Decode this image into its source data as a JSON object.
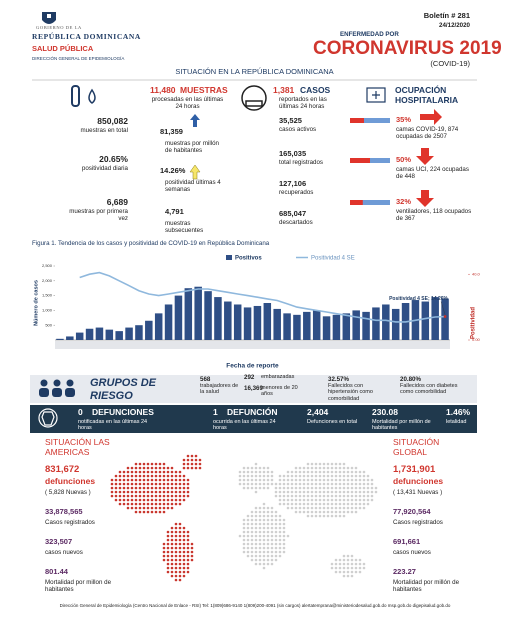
{
  "header": {
    "gov_line1": "GOBIERNO DE LA",
    "gov_line2": "REPÚBLICA DOMINICANA",
    "ministry": "SALUD PÚBLICA",
    "directorate": "DIRECCIÓN GENERAL DE EPIDEMIOLOGÍA",
    "bulletin": "Boletín # 281",
    "date": "24/12/2020",
    "kicker": "ENFERMEDAD POR",
    "title": "CORONAVIRUS 2019",
    "subtitle": "(COVID-19)"
  },
  "section_title": "SITUACIÓN EN LA REPÚBLICA DOMINICANA",
  "samples": [
    {
      "value": "850,082",
      "label": "muestras en total"
    },
    {
      "value": "20.65%",
      "label": "positividad diaria"
    },
    {
      "value": "6,689",
      "label": "muestras por primera vez"
    }
  ],
  "tests": {
    "head_value": "11,480",
    "head_label": "MUESTRAS",
    "head_note": "procesadas en las últimas 24 horas",
    "items": [
      {
        "value": "81,359",
        "label": "muestras por millón de habitantes"
      },
      {
        "value": "14.26%",
        "label": "positividad últimas 4 semanas"
      },
      {
        "value": "4,791",
        "label": "muestras subsecuentes"
      }
    ]
  },
  "cases": {
    "head_value": "1,381",
    "head_label": "CASOS",
    "head_note": "reportados en las últimas 24 horas",
    "items": [
      {
        "value": "35,525",
        "label": "casos activos"
      },
      {
        "value": "165,035",
        "label": "total registrados"
      },
      {
        "value": "127,106",
        "label": "recuperados"
      },
      {
        "value": "685,047",
        "label": "descartados"
      }
    ]
  },
  "hospital": {
    "title": "OCUPACIÓN HOSPITALARIA",
    "items": [
      {
        "value": "35%",
        "label": "camas COVID-19,  874 ocupadas de 2507"
      },
      {
        "value": "50%",
        "label": "camas UCI,  224 ocupadas de 448"
      },
      {
        "value": "32%",
        "label": "ventiladores, 118 ocupados de 367"
      }
    ]
  },
  "figure_title": "Figura 1. Tendencia de los casos y positividad de COVID-19 en República Dominicana",
  "chart_data": {
    "type": "bar",
    "x_label": "Fecha de reporte",
    "y_label": "Número de casos",
    "y2_label": "Positividad",
    "annotation": "Positividad 4 SE; 14.26%",
    "categories": [
      null,
      null,
      null,
      null,
      null,
      null,
      null,
      null,
      null,
      null,
      null,
      null,
      null,
      null,
      null,
      null,
      null,
      null,
      null,
      null,
      null,
      null,
      null,
      null,
      null,
      null,
      null,
      null,
      null,
      null,
      null,
      null,
      null,
      null,
      null,
      null,
      null,
      null,
      null,
      null
    ],
    "series": [
      {
        "name": "Positivos",
        "color": "#2f4f86",
        "values": [
          40,
          120,
          250,
          380,
          420,
          350,
          300,
          420,
          500,
          650,
          900,
          1200,
          1500,
          1750,
          1800,
          1650,
          1450,
          1300,
          1200,
          1100,
          1150,
          1250,
          1050,
          900,
          850,
          950,
          1000,
          800,
          850,
          900,
          1000,
          950,
          1100,
          1200,
          1050,
          1250,
          1350,
          1300,
          1450,
          1400
        ]
      },
      {
        "name": "Positividad 4 SE",
        "color": "#8fb8dd",
        "type": "line",
        "axis": "y2",
        "values": [
          null,
          null,
          38,
          40,
          41,
          39,
          36,
          33,
          30,
          28,
          27,
          28,
          29,
          30,
          31,
          31,
          30,
          29,
          28,
          27,
          26,
          25,
          24,
          22,
          20,
          19,
          18,
          17,
          16,
          15,
          14,
          13,
          12,
          12,
          11,
          11,
          12,
          13,
          14,
          14.26
        ]
      }
    ],
    "ylim": [
      0,
      2500
    ],
    "yticks": [
      500,
      {
        "value": 1000,
        "label": "1,000"
      },
      {
        "value": 1500,
        "label": "1,500"
      },
      {
        "value": 2000,
        "label": "2,000"
      },
      {
        "value": 2500,
        "label": "2,500"
      }
    ],
    "y2lim": [
      0,
      45
    ],
    "y2ticks": [
      {
        "value": 0,
        "label": "0.00%"
      },
      {
        "value": 40,
        "label": "40.00%"
      }
    ]
  },
  "risk_groups": {
    "title": "GRUPOS DE RIESGO",
    "items": [
      {
        "value": "568",
        "label": "trabajadores de la salud"
      },
      {
        "value": "292",
        "label": "embarazadas"
      },
      {
        "value": "16,369",
        "label": "menores de 20 años"
      },
      {
        "value": "32.57%",
        "label": "Fallecidos con hipertensión como comorbilidad"
      },
      {
        "value": "20.80%",
        "label": "Fallecidos con diabetes como comorbilidad"
      }
    ]
  },
  "deaths": [
    {
      "value": "0",
      "title": "DEFUNCIONES",
      "label": "notificadas en las últimas 24 horas"
    },
    {
      "value": "1",
      "title": "DEFUNCIÓN",
      "label": "ocurrida en las últimas 24 horas"
    },
    {
      "value": "2,404",
      "label": "Defunciones en total"
    },
    {
      "value": "230.08",
      "label": "Mortalidad por millón de habitantes"
    },
    {
      "value": "1.46%",
      "label": "letalidad"
    }
  ],
  "americas": {
    "title": "SITUACIÓN LAS AMERICAS",
    "deaths": "831,672",
    "deaths_label": "defunciones",
    "deaths_new": "( 5,828 Nuevas )",
    "cases": "33,878,565",
    "cases_label": "Casos registrados",
    "new_cases": "323,507",
    "new_cases_label": "casos nuevos",
    "mortality": "801.44",
    "mortality_label": "Mortalidad por millon de habitantes"
  },
  "global": {
    "title": "SITUACIÓN GLOBAL",
    "deaths": "1,731,901",
    "deaths_label": "defunciones",
    "deaths_new": "( 13,431 Nuevas )",
    "cases": "77,920,564",
    "cases_label": "Casos registrados",
    "new_cases": "691,661",
    "new_cases_label": "casos nuevos",
    "mortality": "223.27",
    "mortality_label": "Mortalidad por millón de habitantes"
  },
  "footer": "Dirección General de Epidemiología (Centro Nacional de Enlace - RSI) Tel: 1(809)686-9140   1(809)200-4091 (sin cargos)   alertatemprana@ministeriodesalud.gob.do   msp.gob.do   digepisalud.gob.do"
}
